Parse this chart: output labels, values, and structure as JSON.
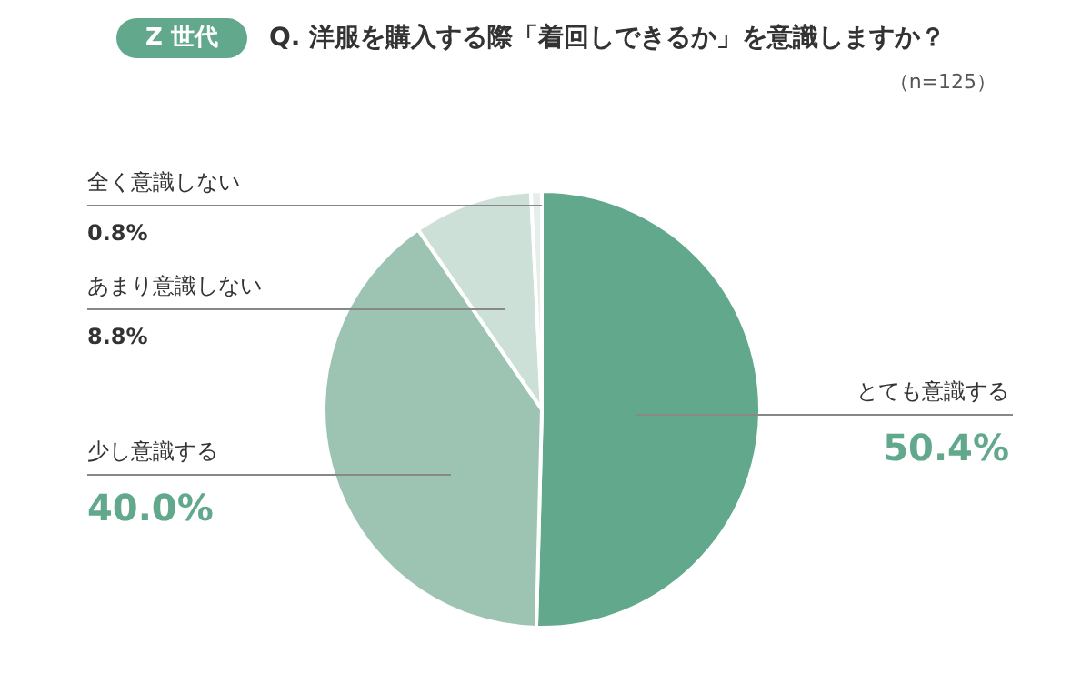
{
  "chart_data": {
    "type": "pie",
    "title": "Q. 洋服を購入する際「着回しできるか」を意識しますか？",
    "subtitle": "Z 世代",
    "annotations": [
      "（n=125）"
    ],
    "categories": [
      "とても意識する",
      "少し意識する",
      "あまり意識しない",
      "全く意識しない"
    ],
    "values": [
      50.4,
      40.0,
      8.8,
      0.8
    ],
    "value_labels": [
      "50.4%",
      "40.0%",
      "8.8%",
      "0.8%"
    ],
    "colors": [
      "#62a88c",
      "#9dc3b3",
      "#cde0d8",
      "#e6eeea"
    ]
  }
}
